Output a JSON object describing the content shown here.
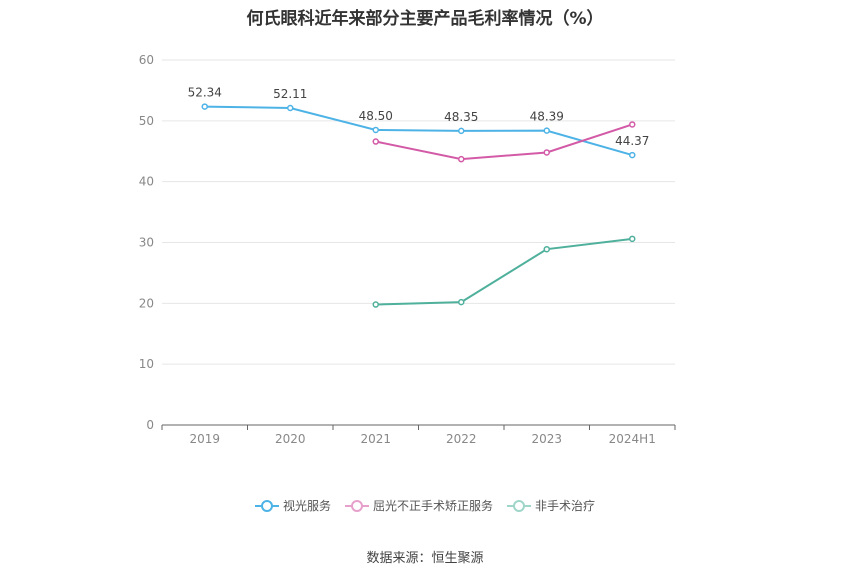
{
  "chart_data": {
    "type": "line",
    "title": "何氏眼科近年来部分主要产品毛利率情况（%）",
    "source": "数据来源：恒生聚源",
    "categories": [
      "2019",
      "2020",
      "2021",
      "2022",
      "2023",
      "2024H1"
    ],
    "ylim": [
      0,
      60
    ],
    "yticks": [
      0,
      10,
      20,
      30,
      40,
      50,
      60
    ],
    "grid": true,
    "legend_position": "bottom",
    "series": [
      {
        "name": "视光服务",
        "color": "#4db3e6",
        "values": [
          52.34,
          52.11,
          48.5,
          48.35,
          48.39,
          44.37
        ],
        "labels": [
          "52.34",
          "52.11",
          "48.50",
          "48.35",
          "48.39",
          "44.37"
        ]
      },
      {
        "name": "屈光不正手术矫正服务",
        "color": "#d35aa6",
        "values": [
          null,
          null,
          46.6,
          43.7,
          44.8,
          49.4
        ],
        "labels": []
      },
      {
        "name": "非手术治疗",
        "color": "#4fb09c",
        "values": [
          null,
          null,
          19.8,
          20.2,
          28.9,
          30.6
        ],
        "labels": []
      }
    ]
  }
}
